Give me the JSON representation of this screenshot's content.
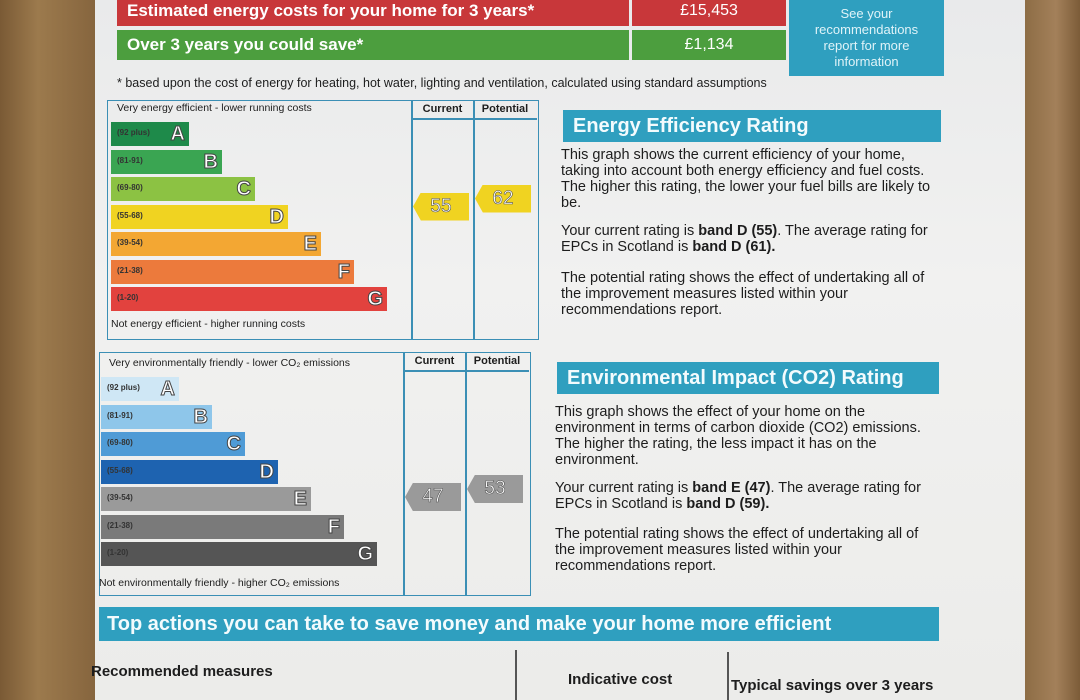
{
  "costs": {
    "estimated_label": "Estimated energy costs for your home for 3 years*",
    "estimated_value": "£15,453",
    "save_label": "Over 3 years you could save*",
    "save_value": "£1,134",
    "see_recommendations": "See your recommendations report for more information",
    "footnote": "* based upon the cost of energy for heating, hot water, lighting and ventilation, calculated using standard assumptions"
  },
  "energy_chart": {
    "top_note": "Very energy efficient - lower running costs",
    "bottom_note": "Not energy efficient - higher running costs",
    "current_header": "Current",
    "potential_header": "Potential",
    "bands": [
      {
        "range": "(92 plus)",
        "letter": "A",
        "color": "#1e8a4a"
      },
      {
        "range": "(81-91)",
        "letter": "B",
        "color": "#3aa552"
      },
      {
        "range": "(69-80)",
        "letter": "C",
        "color": "#8cc243"
      },
      {
        "range": "(55-68)",
        "letter": "D",
        "color": "#f0d321"
      },
      {
        "range": "(39-54)",
        "letter": "E",
        "color": "#f3a733"
      },
      {
        "range": "(21-38)",
        "letter": "F",
        "color": "#ec7a3c"
      },
      {
        "range": "(1-20)",
        "letter": "G",
        "color": "#e2423e"
      }
    ],
    "current": "55",
    "potential": "62",
    "current_color": "#f0d321",
    "potential_color": "#f0d321"
  },
  "energy_panel": {
    "title": "Energy Efficiency Rating",
    "p1": "This graph shows the current efficiency of your home, taking into account both energy efficiency and fuel costs. The higher this rating, the lower your fuel bills are likely to be.",
    "p2_prefix": "Your current rating is ",
    "p2_band": "band D (55)",
    "p2_mid": ". The average rating for EPCs in Scotland is ",
    "p2_avg": "band D (61).",
    "p3": "The potential rating shows the effect of undertaking all of the improvement measures listed within your recommendations report."
  },
  "env_chart": {
    "top_note": "Very environmentally friendly - lower CO₂ emissions",
    "bottom_note": "Not environmentally friendly - higher CO₂ emissions",
    "current_header": "Current",
    "potential_header": "Potential",
    "bands": [
      {
        "range": "(92 plus)",
        "letter": "A",
        "color": "#cfe7f5"
      },
      {
        "range": "(81-91)",
        "letter": "B",
        "color": "#8ec6ea"
      },
      {
        "range": "(69-80)",
        "letter": "C",
        "color": "#4f9bd6"
      },
      {
        "range": "(55-68)",
        "letter": "D",
        "color": "#1e63b0"
      },
      {
        "range": "(39-54)",
        "letter": "E",
        "color": "#9a9a9a"
      },
      {
        "range": "(21-38)",
        "letter": "F",
        "color": "#7a7a7a"
      },
      {
        "range": "(1-20)",
        "letter": "G",
        "color": "#555555"
      }
    ],
    "current": "47",
    "potential": "53",
    "current_color": "#9a9a9a",
    "potential_color": "#9a9a9a"
  },
  "env_panel": {
    "title": "Environmental Impact (CO2) Rating",
    "p1": "This graph shows the effect of your home on the environment in terms of carbon dioxide (CO2) emissions. The higher the rating, the less impact it has on the environment.",
    "p2_prefix": "Your current rating is ",
    "p2_band": "band E (47)",
    "p2_mid": ". The average rating for EPCs in Scotland is ",
    "p2_avg": "band D (59).",
    "p3": "The potential rating shows the effect of undertaking all of the improvement measures listed within your recommendations report."
  },
  "actions": {
    "title": "Top actions you can take to save money and make your home more efficient",
    "col1": "Recommended measures",
    "col2": "Indicative cost",
    "col3": "Typical savings over 3 years"
  }
}
